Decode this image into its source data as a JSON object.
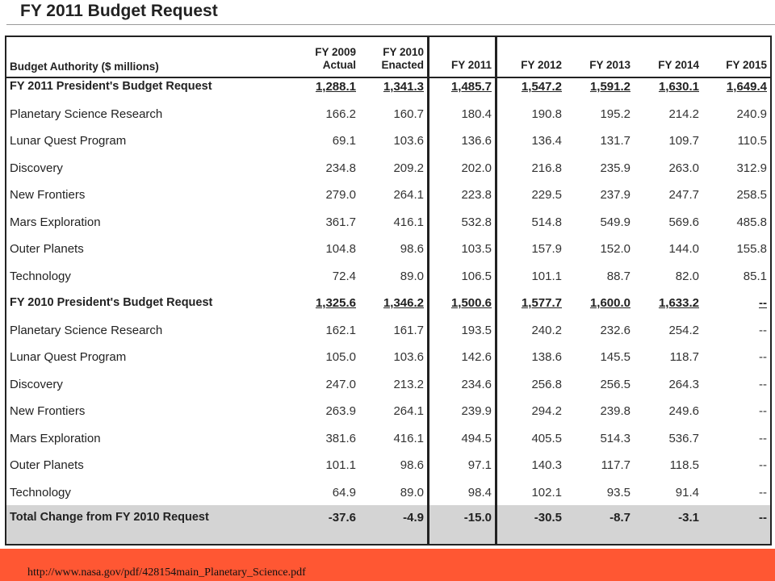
{
  "title": "FY 2011 Budget Request",
  "header": {
    "label": "Budget Authority ($ millions)",
    "columns": [
      {
        "line1": "FY 2009",
        "line2": "Actual"
      },
      {
        "line1": "FY 2010",
        "line2": "Enacted"
      },
      {
        "line1": "",
        "line2": "FY 2011"
      },
      {
        "line1": "",
        "line2": "FY 2012"
      },
      {
        "line1": "",
        "line2": "FY 2013"
      },
      {
        "line1": "",
        "line2": "FY 2014"
      },
      {
        "line1": "",
        "line2": "FY 2015"
      }
    ]
  },
  "rows": [
    {
      "label": "FY 2011 President's Budget Request",
      "bold": true,
      "values": [
        "1,288.1",
        "1,341.3",
        "1,485.7",
        "1,547.2",
        "1,591.2",
        "1,630.1",
        "1,649.4"
      ]
    },
    {
      "label": "Planetary Science Research",
      "values": [
        "166.2",
        "160.7",
        "180.4",
        "190.8",
        "195.2",
        "214.2",
        "240.9"
      ]
    },
    {
      "label": "Lunar Quest Program",
      "values": [
        "69.1",
        "103.6",
        "136.6",
        "136.4",
        "131.7",
        "109.7",
        "110.5"
      ]
    },
    {
      "label": "Discovery",
      "values": [
        "234.8",
        "209.2",
        "202.0",
        "216.8",
        "235.9",
        "263.0",
        "312.9"
      ]
    },
    {
      "label": "New Frontiers",
      "values": [
        "279.0",
        "264.1",
        "223.8",
        "229.5",
        "237.9",
        "247.7",
        "258.5"
      ]
    },
    {
      "label": "Mars Exploration",
      "values": [
        "361.7",
        "416.1",
        "532.8",
        "514.8",
        "549.9",
        "569.6",
        "485.8"
      ]
    },
    {
      "label": "Outer Planets",
      "values": [
        "104.8",
        "98.6",
        "103.5",
        "157.9",
        "152.0",
        "144.0",
        "155.8"
      ]
    },
    {
      "label": "Technology",
      "values": [
        "72.4",
        "89.0",
        "106.5",
        "101.1",
        "88.7",
        "82.0",
        "85.1"
      ]
    },
    {
      "label": "FY 2010 President's Budget Request",
      "bold": true,
      "values": [
        "1,325.6",
        "1,346.2",
        "1,500.6",
        "1,577.7",
        "1,600.0",
        "1,633.2",
        "--"
      ]
    },
    {
      "label": "Planetary Science Research",
      "values": [
        "162.1",
        "161.7",
        "193.5",
        "240.2",
        "232.6",
        "254.2",
        "--"
      ]
    },
    {
      "label": "Lunar Quest Program",
      "values": [
        "105.0",
        "103.6",
        "142.6",
        "138.6",
        "145.5",
        "118.7",
        "--"
      ]
    },
    {
      "label": "Discovery",
      "values": [
        "247.0",
        "213.2",
        "234.6",
        "256.8",
        "256.5",
        "264.3",
        "--"
      ]
    },
    {
      "label": "New Frontiers",
      "values": [
        "263.9",
        "264.1",
        "239.9",
        "294.2",
        "239.8",
        "249.6",
        "--"
      ]
    },
    {
      "label": "Mars Exploration",
      "values": [
        "381.6",
        "416.1",
        "494.5",
        "405.5",
        "514.3",
        "536.7",
        "--"
      ]
    },
    {
      "label": "Outer Planets",
      "values": [
        "101.1",
        "98.6",
        "97.1",
        "140.3",
        "117.7",
        "118.5",
        "--"
      ]
    },
    {
      "label": "Technology",
      "values": [
        "64.9",
        "89.0",
        "98.4",
        "102.1",
        "93.5",
        "91.4",
        "--"
      ]
    },
    {
      "label": "Total Change from FY 2010 Request",
      "bold": true,
      "total": true,
      "values": [
        "-37.6",
        "-4.9",
        "-15.0",
        "-30.5",
        "-8.7",
        "-3.1",
        "--"
      ]
    }
  ],
  "footer": {
    "link_text": "http://www.nasa.gov/pdf/428154main_Planetary_Science.pdf"
  }
}
